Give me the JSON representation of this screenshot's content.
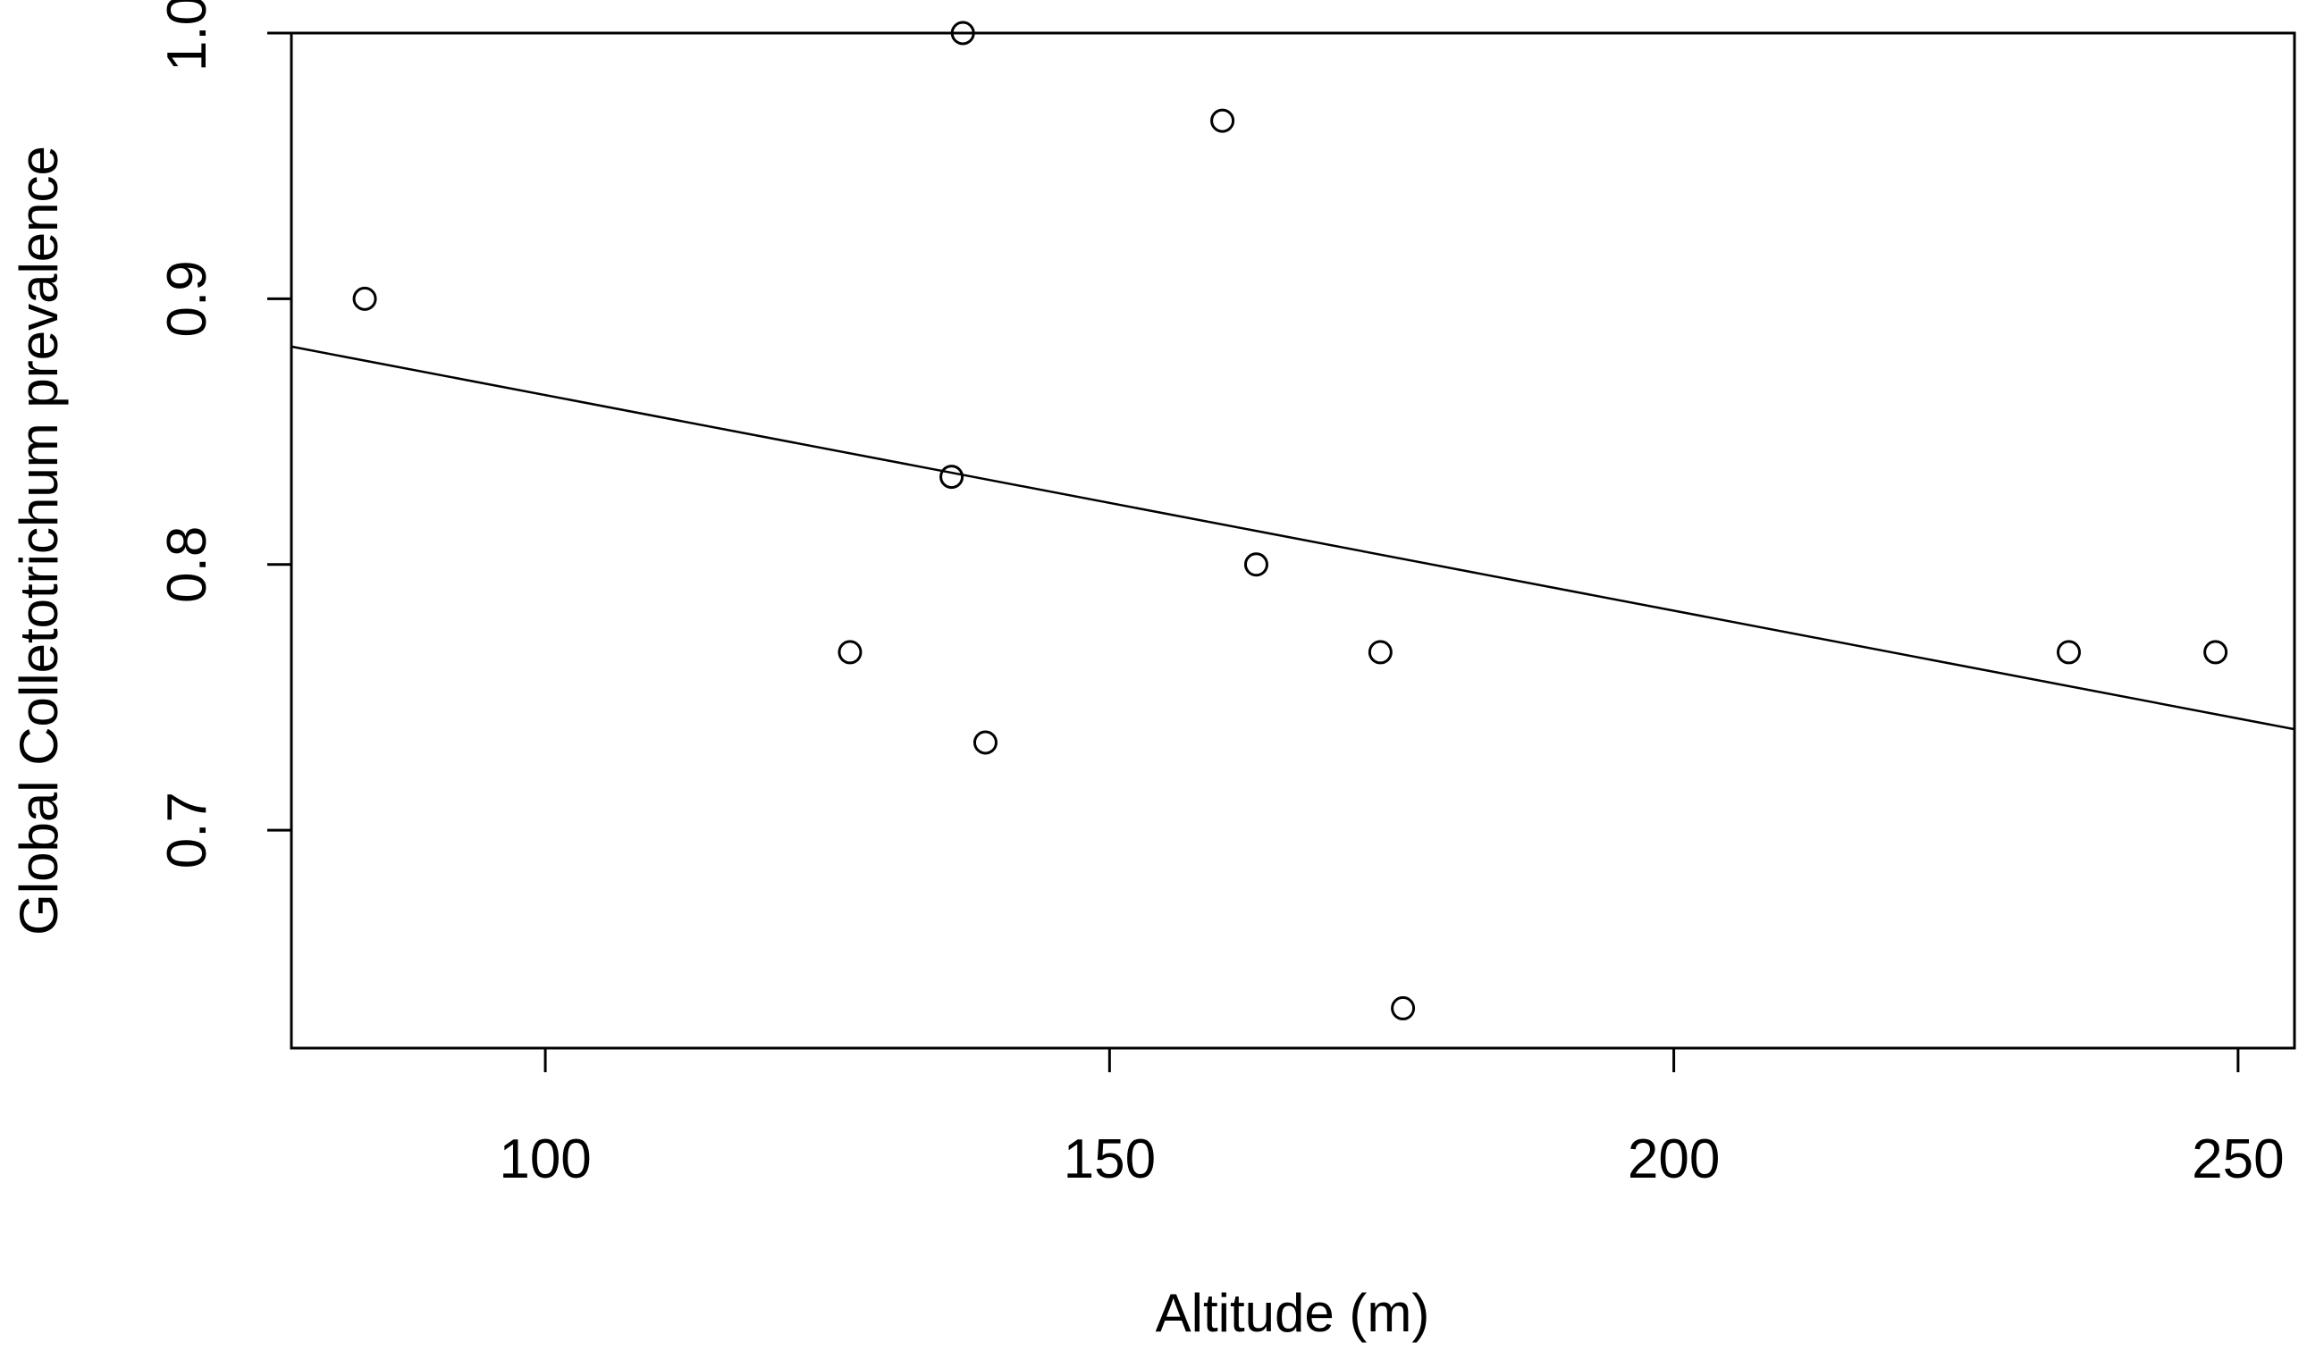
{
  "chart_data": {
    "type": "scatter",
    "xlabel": "Altitude (m)",
    "ylabel": "Global Colletotrichum prevalence",
    "xlim": [
      77.5,
      255
    ],
    "ylim": [
      0.618,
      1.0
    ],
    "x_ticks": [
      100,
      150,
      200,
      250
    ],
    "y_ticks": [
      0.7,
      0.8,
      0.9,
      1.0
    ],
    "x_tick_labels": [
      "100",
      "150",
      "200",
      "250"
    ],
    "y_tick_labels": [
      "0.7",
      "0.8",
      "0.9",
      "1.0"
    ],
    "grid": false,
    "points": [
      {
        "x": 84,
        "y": 0.9
      },
      {
        "x": 127,
        "y": 0.767
      },
      {
        "x": 136,
        "y": 0.833
      },
      {
        "x": 137,
        "y": 1.0
      },
      {
        "x": 139,
        "y": 0.733
      },
      {
        "x": 160,
        "y": 0.967
      },
      {
        "x": 163,
        "y": 0.8
      },
      {
        "x": 174,
        "y": 0.767
      },
      {
        "x": 176,
        "y": 0.633
      },
      {
        "x": 235,
        "y": 0.767
      },
      {
        "x": 248,
        "y": 0.767
      }
    ],
    "trend_line": {
      "x": [
        77.5,
        255
      ],
      "y": [
        0.882,
        0.738
      ]
    }
  }
}
